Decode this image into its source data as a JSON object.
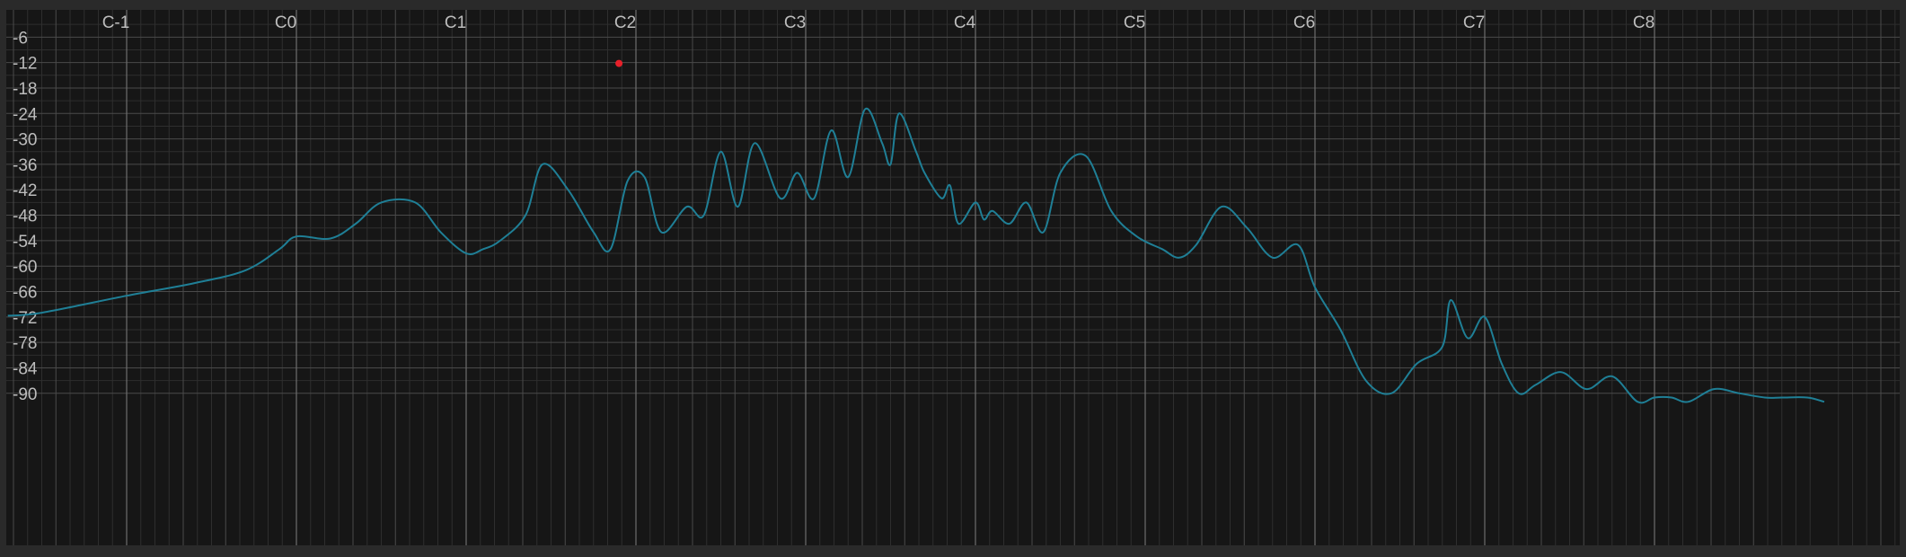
{
  "colors": {
    "frame": "#2a2a2a",
    "plot_background": "#161616",
    "grid_minor": "#2e2e2e",
    "grid_major": "#4a4a4a",
    "grid_octave": "#6e6e6e",
    "label": "#bdbdbd",
    "spectrum": "#1f7f96",
    "marker": "#e8202a"
  },
  "icons": {
    "marker": "red-dot"
  },
  "chart_data": {
    "type": "line",
    "x_scale": "log-frequency (octaves)",
    "x_ticks": [
      "C-1",
      "C0",
      "C1",
      "C2",
      "C3",
      "C4",
      "C5",
      "C6",
      "C7",
      "C8"
    ],
    "y_ticks": [
      -6,
      -12,
      -18,
      -24,
      -30,
      -36,
      -42,
      -48,
      -54,
      -60,
      -66,
      -72,
      -78,
      -84,
      -90
    ],
    "ylim": [
      -92,
      0
    ],
    "grid": true,
    "legend": "none",
    "series": [
      {
        "octave_position": [
          -1.7,
          -1.5,
          -1.0,
          -0.6,
          -0.3,
          -0.1,
          0.0,
          0.2,
          0.35,
          0.5,
          0.7,
          0.85,
          1.0,
          1.1,
          1.2,
          1.35,
          1.45,
          1.6,
          1.75,
          1.85,
          1.95,
          2.05,
          2.15,
          2.3,
          2.4,
          2.5,
          2.6,
          2.7,
          2.85,
          2.95,
          3.05,
          3.15,
          3.25,
          3.35,
          3.45,
          3.5,
          3.55,
          3.65,
          3.7,
          3.8,
          3.85,
          3.9,
          4.0,
          4.05,
          4.1,
          4.2,
          4.3,
          4.4,
          4.5,
          4.65,
          4.8,
          4.95,
          5.1,
          5.2,
          5.3,
          5.45,
          5.6,
          5.75,
          5.9,
          6.0,
          6.15,
          6.3,
          6.45,
          6.6,
          6.75,
          6.8,
          6.9,
          7.0,
          7.1,
          7.2,
          7.3,
          7.45,
          7.6,
          7.75,
          7.9,
          8.0,
          8.1,
          8.2,
          8.35,
          8.5,
          8.65,
          8.75,
          8.9,
          9.0
        ],
        "db": [
          -71.7,
          -71,
          -67,
          -64,
          -61,
          -56,
          -53,
          -53.5,
          -50,
          -45,
          -45,
          -52,
          -57,
          -56,
          -54,
          -48,
          -36,
          -42,
          -52,
          -56,
          -40,
          -39,
          -52,
          -46,
          -48,
          -33,
          -46,
          -31,
          -44,
          -38,
          -44,
          -28,
          -39,
          -23,
          -31,
          -36,
          -24,
          -33,
          -38,
          -44,
          -41,
          -50,
          -45,
          -49,
          -47,
          -50,
          -45,
          -52,
          -38,
          -34,
          -47,
          -53,
          -56,
          -58,
          -55,
          -46,
          -51,
          -58,
          -55,
          -65,
          -75,
          -87,
          -90,
          -83,
          -79,
          -68,
          -77,
          -72,
          -83,
          -90,
          -88,
          -85,
          -89,
          -86,
          -92,
          -91,
          -91,
          -92,
          -89,
          -90,
          -91,
          -91,
          -91,
          -92
        ]
      }
    ],
    "marker": {
      "octave_position": 1.9,
      "db": -12.2
    }
  }
}
